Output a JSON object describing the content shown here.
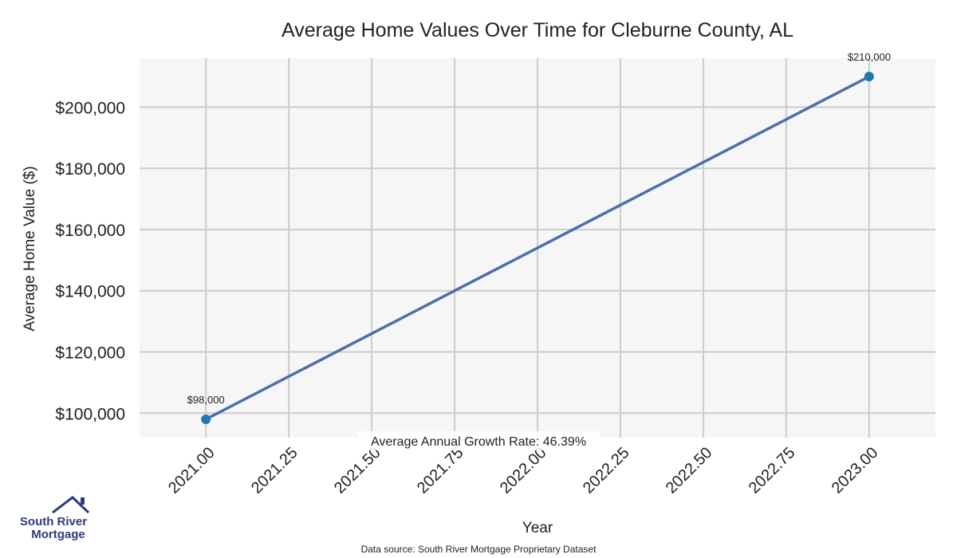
{
  "chart_data": {
    "type": "line",
    "title": "Average Home Values Over Time for Cleburne County, AL",
    "xlabel": "Year",
    "ylabel": "Average Home Value ($)",
    "x": [
      2021,
      2023
    ],
    "series": [
      {
        "values": [
          98000,
          210000
        ],
        "point_labels": [
          "$98,000",
          "$210,000"
        ],
        "color": "#4d6fa8",
        "marker_color": "#1f77b4"
      }
    ],
    "xlim": [
      2020.8,
      2023.2
    ],
    "ylim": [
      92000,
      216000
    ],
    "x_ticks": [
      2021.0,
      2021.25,
      2021.5,
      2021.75,
      2022.0,
      2022.25,
      2022.5,
      2022.75,
      2023.0
    ],
    "x_tick_labels": [
      "2021.00",
      "2021.25",
      "2021.50",
      "2021.75",
      "2022.00",
      "2022.25",
      "2022.50",
      "2022.75",
      "2023.00"
    ],
    "y_ticks": [
      100000,
      120000,
      140000,
      160000,
      180000,
      200000
    ],
    "y_tick_labels": [
      "$100,000",
      "$120,000",
      "$140,000",
      "$160,000",
      "$180,000",
      "$200,000"
    ],
    "grid": true,
    "annotation": "Average Annual Growth Rate: 46.39%",
    "source_note": "Data source: South River Mortgage Proprietary Dataset"
  },
  "logo": {
    "line1": "South River",
    "line2": "Mortgage",
    "icon": "house-roof-icon",
    "color": "#2c3d7a"
  },
  "colors": {
    "plot_background": "#f6f6f6",
    "grid": "#cccccc",
    "text": "#222222"
  }
}
